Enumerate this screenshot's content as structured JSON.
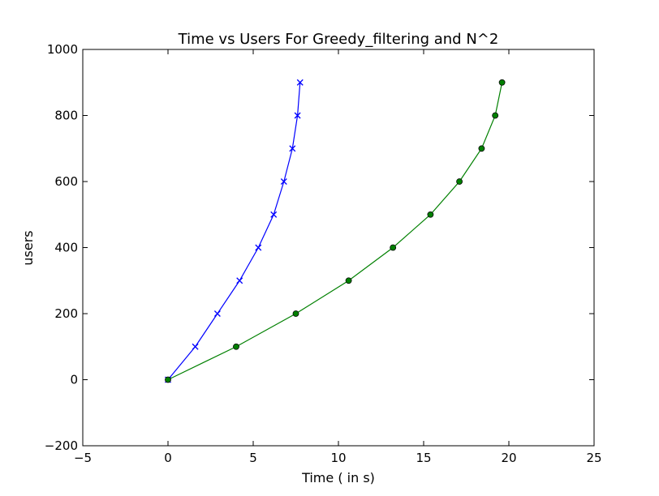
{
  "chart_data": {
    "type": "line",
    "title": "Time vs Users For Greedy_filtering and N^2",
    "xlabel": "Time ( in s)",
    "ylabel": "users",
    "xlim": [
      -5,
      25
    ],
    "ylim": [
      -200,
      1000
    ],
    "x_ticks": [
      -5,
      0,
      5,
      10,
      15,
      20,
      25
    ],
    "y_ticks": [
      -200,
      0,
      200,
      400,
      600,
      800,
      1000
    ],
    "x_tick_labels": [
      "−5",
      "0",
      "5",
      "10",
      "15",
      "20",
      "25"
    ],
    "y_tick_labels": [
      "−200",
      "0",
      "200",
      "400",
      "600",
      "800",
      "1000"
    ],
    "grid": false,
    "legend": "none",
    "series": [
      {
        "color": "#0000ff",
        "marker": "x",
        "x": [
          0,
          1.6,
          2.9,
          4.2,
          5.3,
          6.2,
          6.8,
          7.3,
          7.6,
          7.75
        ],
        "y": [
          0,
          100,
          200,
          300,
          400,
          500,
          600,
          700,
          800,
          900
        ]
      },
      {
        "color": "#008000",
        "marker": "o",
        "x": [
          0,
          4.0,
          7.5,
          10.6,
          13.2,
          15.4,
          17.1,
          18.4,
          19.2,
          19.6
        ],
        "y": [
          0,
          100,
          200,
          300,
          400,
          500,
          600,
          700,
          800,
          900
        ]
      }
    ]
  }
}
